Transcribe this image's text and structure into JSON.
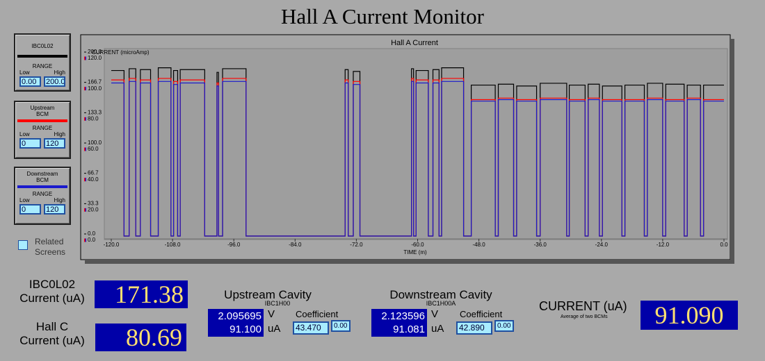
{
  "title": "Hall A Current Monitor",
  "panels": [
    {
      "name_lines": [
        "IBC0L02"
      ],
      "range_label": "RANGE",
      "low_label": "Low",
      "high_label": "High",
      "low": "0.00",
      "high": "200.0"
    },
    {
      "name_lines": [
        "Upstream",
        "BCM"
      ],
      "range_label": "RANGE",
      "low_label": "Low",
      "high_label": "High",
      "low": "0",
      "high": "120"
    },
    {
      "name_lines": [
        "Downstream",
        "BCM"
      ],
      "range_label": "RANGE",
      "low_label": "Low",
      "high_label": "High",
      "low": "0",
      "high": "120"
    }
  ],
  "related_button": {
    "lines": [
      "Related",
      "Screens"
    ]
  },
  "readouts": [
    {
      "label_lines": [
        "IBC0L02",
        "Current (uA)"
      ],
      "value": "171.38"
    },
    {
      "label_lines": [
        "Hall C",
        "Current (uA)"
      ],
      "value": "80.69"
    }
  ],
  "cavities": [
    {
      "title": "Upstream Cavity",
      "pv": "IBC1H00",
      "voltage": "2.095695",
      "voltage_unit": "V",
      "current": "91.100",
      "current_unit": "uA",
      "coefficient_label": "Coefficient",
      "coefficient": "43.470",
      "offset": "0.00"
    },
    {
      "title": "Downstream Cavity",
      "pv": "IBC1H00A",
      "voltage": "2.123596",
      "voltage_unit": "V",
      "current": "91.081",
      "current_unit": "uA",
      "coefficient_label": "Coefficient",
      "coefficient": "42.890",
      "offset": "0.00"
    }
  ],
  "average": {
    "label": "CURRENT (uA)",
    "note": "Average of two BCMs",
    "value": "91.090"
  },
  "chart_data": {
    "type": "line",
    "title": "Hall A Current",
    "y_label": "CURRENT (microAmp)",
    "x_label": "TIME (m)",
    "xlim": [
      -120,
      0
    ],
    "xticks": [
      {
        "value": -120,
        "label": "-120.0"
      },
      {
        "value": -108,
        "label": "-108.0"
      },
      {
        "value": -96,
        "label": "-96.0"
      },
      {
        "value": -84,
        "label": "-84.0"
      },
      {
        "value": -72,
        "label": "-72.0"
      },
      {
        "value": -60,
        "label": "-60.0"
      },
      {
        "value": -48,
        "label": "-48.0"
      },
      {
        "value": -36,
        "label": "-36.0"
      },
      {
        "value": -24,
        "label": "-24.0"
      },
      {
        "value": -12,
        "label": "-12.0"
      },
      {
        "value": 0,
        "label": "0.0"
      }
    ],
    "ylim": [
      0,
      200
    ],
    "yticks": [
      {
        "value": 0,
        "label": "0.0"
      },
      33.3,
      66.7,
      {
        "value": 100,
        "label": "100.0"
      },
      133.3,
      166.7,
      {
        "value": 200,
        "label": "200.0"
      }
    ],
    "y2lim": [
      0,
      120
    ],
    "y2ticks": [
      {
        "value": 0,
        "label": "0.0"
      },
      {
        "value": 20,
        "label": "20.0"
      },
      {
        "value": 40,
        "label": "40.0"
      },
      {
        "value": 60,
        "label": "60.0"
      },
      {
        "value": 80,
        "label": "80.0"
      },
      {
        "value": 100,
        "label": "100.0"
      },
      {
        "value": 120,
        "label": "120.0"
      }
    ],
    "x": [
      -120,
      -117.5,
      -117.5,
      -116.5,
      -116.5,
      -115.2,
      -115.2,
      -114.3,
      -114.3,
      -112.3,
      -112.3,
      -110.8,
      -110.8,
      -108.3,
      -108.3,
      -107.8,
      -107.8,
      -107,
      -107,
      -106.5,
      -106.5,
      -101.7,
      -101.7,
      -99.3,
      -99.3,
      -99,
      -99,
      -98.2,
      -98.2,
      -93.6,
      -93.6,
      -74.2,
      -74.2,
      -73.6,
      -73.6,
      -72.6,
      -72.6,
      -71.3,
      -71.3,
      -61.2,
      -61.2,
      -60.8,
      -60.8,
      -60.3,
      -60.3,
      -57.9,
      -57.9,
      -57,
      -57,
      -55.8,
      -55.8,
      -55.3,
      -55.3,
      -51,
      -51,
      -49.5,
      -49.5,
      -44.8,
      -44.8,
      -44.2,
      -44.2,
      -41.2,
      -41.2,
      -40.6,
      -40.6,
      -36.7,
      -36.7,
      -36,
      -36,
      -30.8,
      -30.8,
      -30.3,
      -30.3,
      -27.2,
      -27.2,
      -26.6,
      -26.6,
      -24.4,
      -24.4,
      -23.8,
      -23.8,
      -20,
      -20,
      -19.4,
      -19.4,
      -15.6,
      -15.6,
      -15,
      -15,
      -12,
      -12,
      -11.4,
      -11.4,
      -7.8,
      -7.8,
      -7.2,
      -7.2,
      -4.6,
      -4.6,
      -4,
      -4,
      0
    ],
    "series": [
      {
        "color": "#000000",
        "values": [
          182,
          182,
          0,
          0,
          184,
          184,
          0,
          0,
          183,
          183,
          0,
          0,
          185,
          185,
          0,
          0,
          182,
          182,
          0,
          0,
          183,
          183,
          0,
          0,
          180,
          180,
          0,
          0,
          184,
          184,
          0,
          0,
          183,
          183,
          0,
          0,
          181,
          181,
          0,
          0,
          184,
          184,
          0,
          0,
          182,
          182,
          0,
          0,
          183,
          183,
          0,
          0,
          185,
          185,
          0,
          0,
          166,
          166,
          0,
          0,
          167,
          167,
          0,
          0,
          165,
          165,
          0,
          0,
          168,
          168,
          0,
          0,
          166,
          166,
          0,
          0,
          167,
          167,
          0,
          0,
          165,
          165,
          0,
          0,
          166,
          166,
          0,
          0,
          168,
          168,
          0,
          0,
          167,
          167,
          0,
          0,
          166,
          166,
          0,
          0,
          166,
          166
        ]
      },
      {
        "color": "#ff0000",
        "axis": "y2",
        "values": [
          103,
          103,
          0,
          0,
          104,
          104,
          0,
          0,
          103,
          103,
          0,
          0,
          104,
          104,
          0,
          0,
          102,
          102,
          0,
          0,
          103,
          103,
          0,
          0,
          101,
          101,
          0,
          0,
          104,
          104,
          0,
          0,
          103,
          103,
          0,
          0,
          102,
          102,
          0,
          0,
          104,
          104,
          0,
          0,
          103,
          103,
          0,
          0,
          103,
          103,
          0,
          0,
          104,
          104,
          0,
          0,
          90,
          90,
          0,
          0,
          91,
          91,
          0,
          0,
          90,
          90,
          0,
          0,
          91,
          91,
          0,
          0,
          90,
          90,
          0,
          0,
          91,
          91,
          0,
          0,
          90,
          90,
          0,
          0,
          90,
          90,
          0,
          0,
          91,
          91,
          0,
          0,
          90,
          90,
          0,
          0,
          91,
          91,
          0,
          0,
          90,
          90
        ]
      },
      {
        "color": "#1a1acc",
        "axis": "y2",
        "values": [
          101,
          101,
          0,
          0,
          102,
          102,
          0,
          0,
          101,
          101,
          0,
          0,
          102,
          102,
          0,
          0,
          100,
          100,
          0,
          0,
          101,
          101,
          0,
          0,
          99,
          99,
          0,
          0,
          102,
          102,
          0,
          0,
          101,
          101,
          0,
          0,
          100,
          100,
          0,
          0,
          102,
          102,
          0,
          0,
          101,
          101,
          0,
          0,
          101,
          101,
          0,
          0,
          102,
          102,
          0,
          0,
          89,
          89,
          0,
          0,
          90,
          90,
          0,
          0,
          89,
          89,
          0,
          0,
          90,
          90,
          0,
          0,
          89,
          89,
          0,
          0,
          90,
          90,
          0,
          0,
          89,
          89,
          0,
          0,
          89,
          89,
          0,
          0,
          90,
          90,
          0,
          0,
          89,
          89,
          0,
          0,
          90,
          90,
          0,
          0,
          89,
          89
        ]
      }
    ]
  }
}
